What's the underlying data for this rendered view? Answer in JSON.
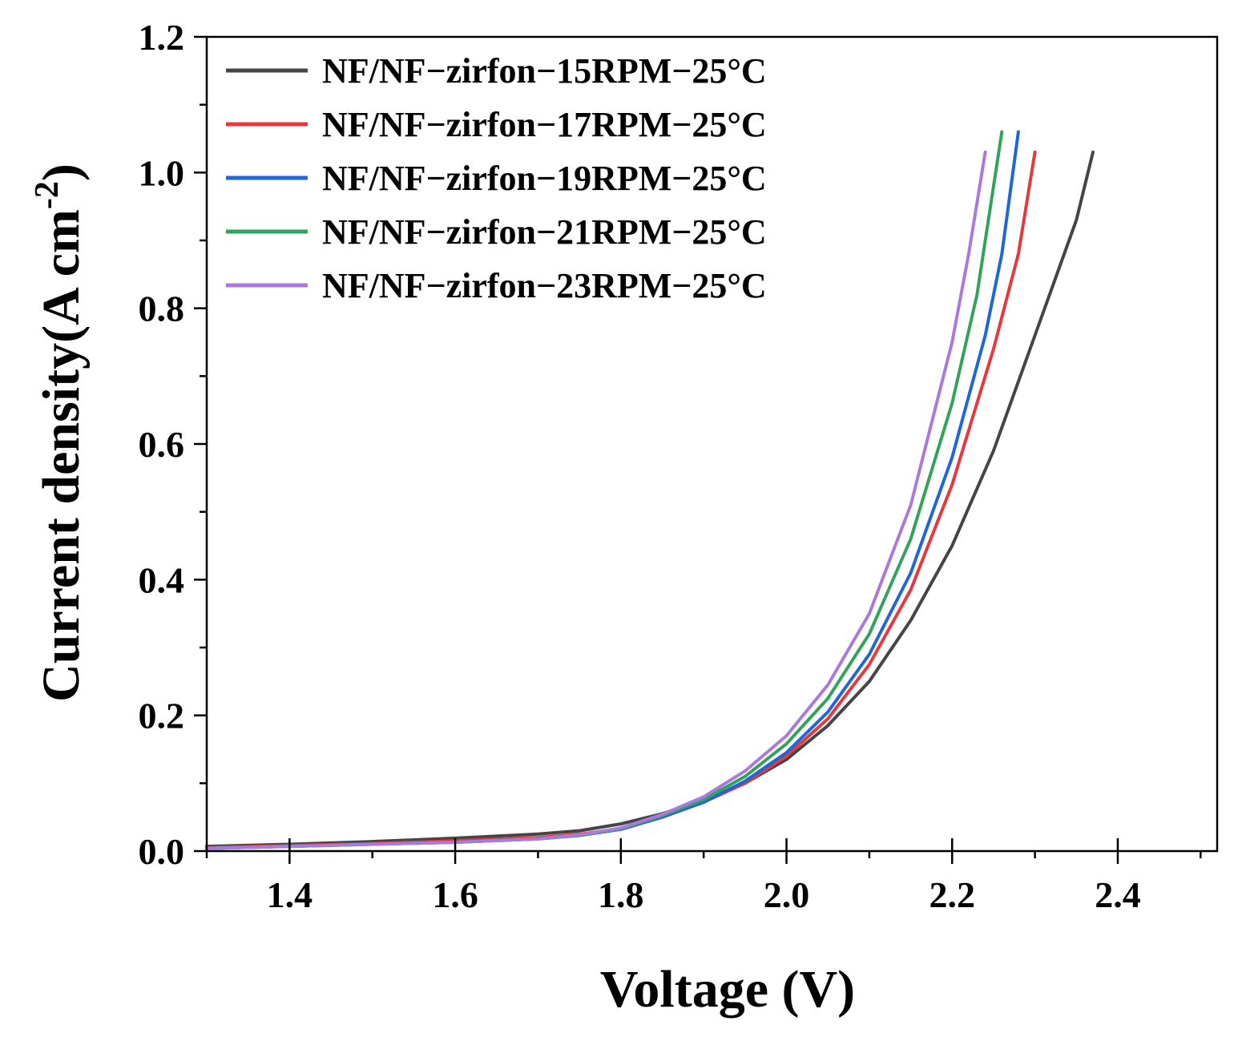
{
  "chart_data": {
    "type": "line",
    "xlabel": "Voltage (V)",
    "ylabel_main": "Current density",
    "ylabel_unit": "(A cm",
    "ylabel_sup": "-2",
    "ylabel_close": ")",
    "xlim": [
      1.3,
      2.52
    ],
    "ylim": [
      0.0,
      1.2
    ],
    "x_ticks": [
      1.4,
      1.6,
      1.8,
      2.0,
      2.2,
      2.4
    ],
    "x_tick_labels": [
      "1.4",
      "1.6",
      "1.8",
      "2.0",
      "2.2",
      "2.4"
    ],
    "y_ticks": [
      0.0,
      0.2,
      0.4,
      0.6,
      0.8,
      1.0,
      1.2
    ],
    "y_tick_labels": [
      "0.0",
      "0.2",
      "0.4",
      "0.6",
      "0.8",
      "1.0",
      "1.2"
    ],
    "legend_position": "top-left",
    "series": [
      {
        "name": "NF/NF−zirfon−15RPM−25°C",
        "color": "#454545",
        "x": [
          1.3,
          1.4,
          1.5,
          1.6,
          1.7,
          1.75,
          1.8,
          1.85,
          1.9,
          1.95,
          2.0,
          2.05,
          2.1,
          2.15,
          2.2,
          2.25,
          2.3,
          2.35,
          2.37
        ],
        "y": [
          0.007,
          0.01,
          0.014,
          0.019,
          0.025,
          0.03,
          0.04,
          0.055,
          0.075,
          0.1,
          0.135,
          0.185,
          0.25,
          0.34,
          0.45,
          0.59,
          0.76,
          0.93,
          1.03
        ]
      },
      {
        "name": "NF/NF−zirfon−17RPM−25°C",
        "color": "#e8383d",
        "x": [
          1.3,
          1.4,
          1.5,
          1.6,
          1.7,
          1.75,
          1.8,
          1.85,
          1.9,
          1.95,
          2.0,
          2.05,
          2.1,
          2.15,
          2.2,
          2.25,
          2.28,
          2.3
        ],
        "y": [
          0.005,
          0.008,
          0.011,
          0.015,
          0.02,
          0.025,
          0.033,
          0.05,
          0.072,
          0.1,
          0.14,
          0.195,
          0.275,
          0.385,
          0.54,
          0.74,
          0.88,
          1.03
        ]
      },
      {
        "name": "NF/NF−zirfon−19RPM−25°C",
        "color": "#1f66d6",
        "x": [
          1.3,
          1.4,
          1.5,
          1.6,
          1.7,
          1.75,
          1.8,
          1.85,
          1.9,
          1.95,
          2.0,
          2.05,
          2.1,
          2.15,
          2.2,
          2.24,
          2.26,
          2.28
        ],
        "y": [
          0.004,
          0.007,
          0.01,
          0.013,
          0.018,
          0.023,
          0.032,
          0.05,
          0.072,
          0.103,
          0.145,
          0.205,
          0.29,
          0.41,
          0.58,
          0.76,
          0.88,
          1.06
        ]
      },
      {
        "name": "NF/NF−zirfon−21RPM−25°C",
        "color": "#33a35c",
        "x": [
          1.3,
          1.4,
          1.5,
          1.6,
          1.7,
          1.75,
          1.8,
          1.85,
          1.9,
          1.95,
          2.0,
          2.05,
          2.1,
          2.15,
          2.2,
          2.23,
          2.26
        ],
        "y": [
          0.004,
          0.007,
          0.01,
          0.013,
          0.018,
          0.023,
          0.033,
          0.052,
          0.076,
          0.11,
          0.158,
          0.225,
          0.32,
          0.46,
          0.66,
          0.82,
          1.06
        ]
      },
      {
        "name": "NF/NF−zirfon−23RPM−25°C",
        "color": "#a97adb",
        "x": [
          1.3,
          1.4,
          1.5,
          1.6,
          1.7,
          1.75,
          1.8,
          1.85,
          1.9,
          1.95,
          2.0,
          2.05,
          2.1,
          2.15,
          2.2,
          2.22,
          2.24
        ],
        "y": [
          0.004,
          0.007,
          0.01,
          0.013,
          0.018,
          0.024,
          0.034,
          0.054,
          0.08,
          0.118,
          0.17,
          0.245,
          0.35,
          0.51,
          0.75,
          0.88,
          1.03
        ]
      }
    ]
  }
}
